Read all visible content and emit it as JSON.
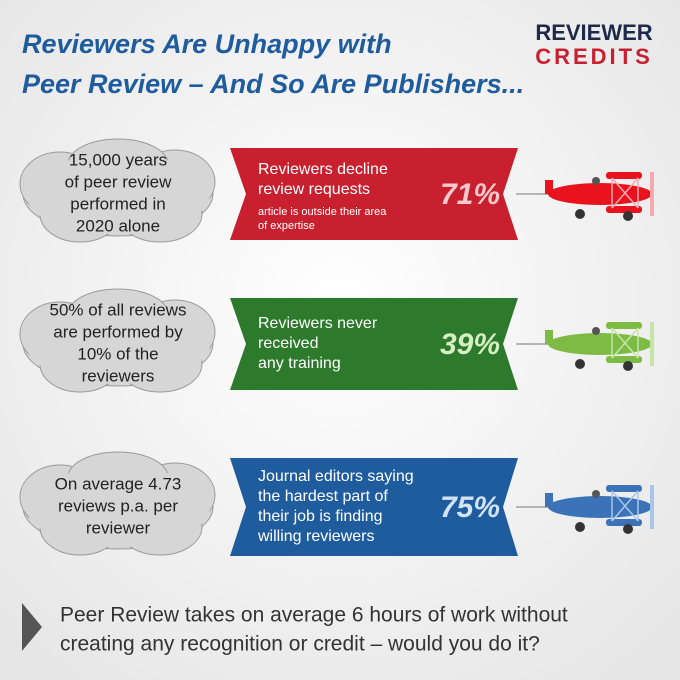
{
  "header": {
    "title": [
      "Reviewers Are Unhappy with",
      "Peer Review – And So Are Publishers..."
    ],
    "logo": [
      "REVIEWER",
      "CREDITS"
    ]
  },
  "rows": [
    {
      "cloud": [
        "15,000 years",
        "of peer review",
        "performed in",
        "2020 alone"
      ],
      "banner": [
        "Reviewers decline",
        "review requests"
      ],
      "note": [
        "article is outside their area",
        "of expertise"
      ],
      "percent": "71%"
    },
    {
      "cloud": [
        "50% of all reviews",
        "are performed by",
        "10% of the",
        "reviewers"
      ],
      "banner": [
        "Reviewers never",
        "received",
        "any training"
      ],
      "note": [],
      "percent": "39%"
    },
    {
      "cloud": [
        "On average 4.73",
        "reviews p.a. per",
        "reviewer"
      ],
      "banner": [
        "Journal editors saying",
        "the hardest part of",
        "their job is finding",
        "willing reviewers"
      ],
      "note": [],
      "percent": "75%"
    }
  ],
  "footer": [
    "Peer Review takes on average 6 hours of work without",
    "creating any recognition or credit – would you do it?"
  ]
}
